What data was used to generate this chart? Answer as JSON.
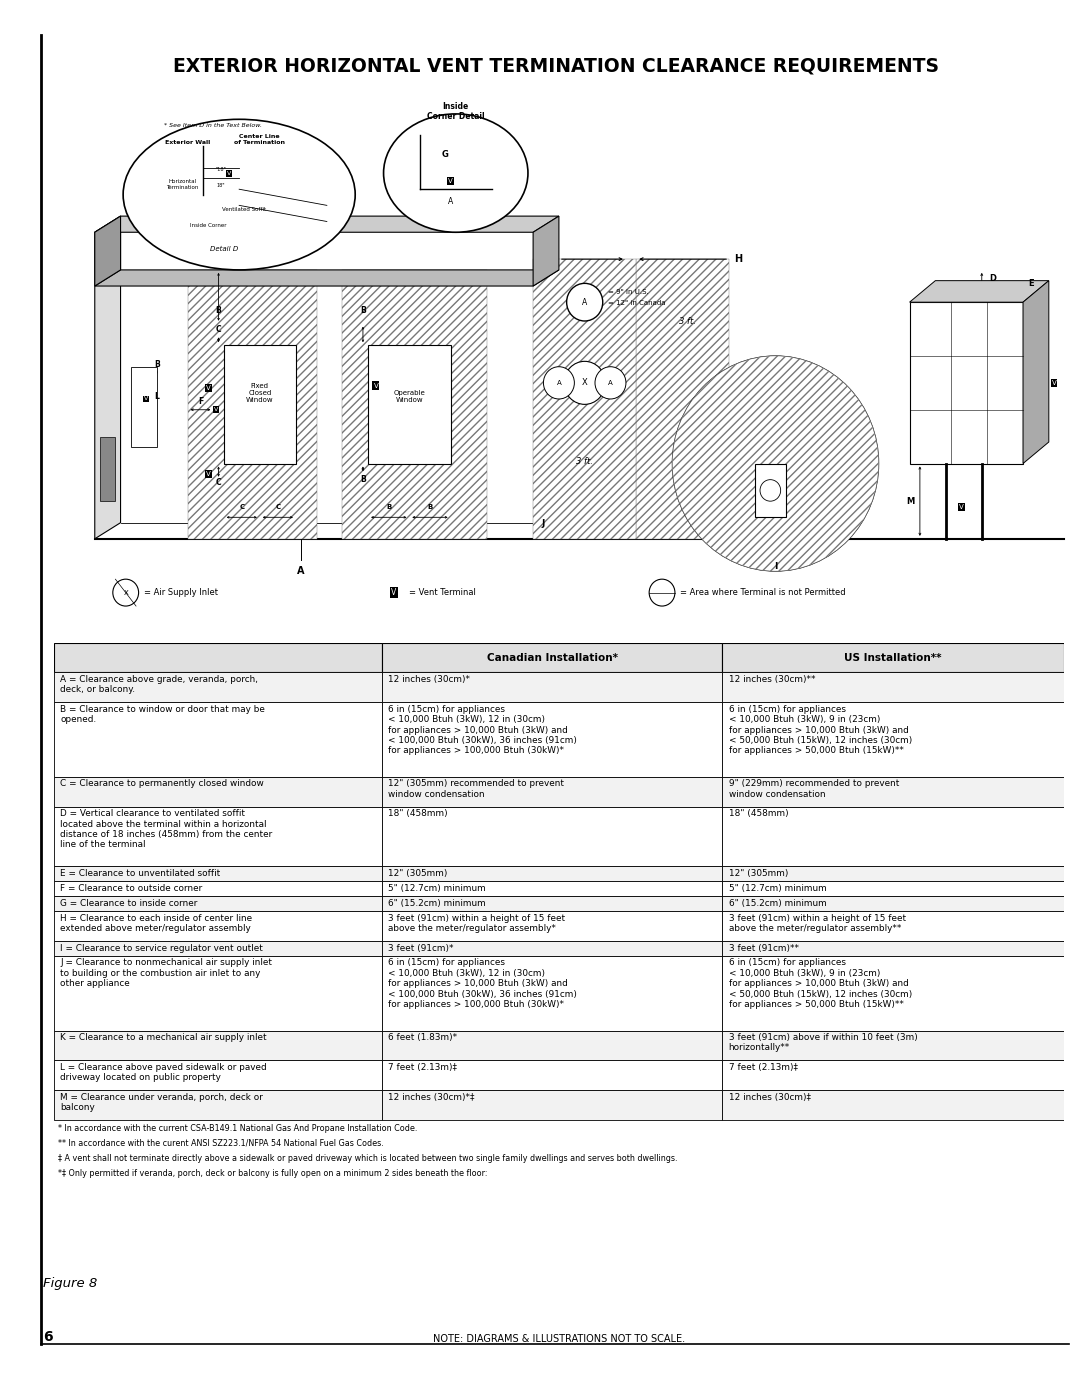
{
  "title": "EXTERIOR HORIZONTAL VENT TERMINATION CLEARANCE REQUIREMENTS",
  "bg_color": "#ffffff",
  "title_fontsize": 13.5,
  "table_headers": [
    "",
    "Canadian Installation*",
    "US Installation**"
  ],
  "table_rows": [
    [
      "A = Clearance above grade, veranda, porch,\ndeck, or balcony.",
      "12 inches (30cm)*",
      "12 inches (30cm)**"
    ],
    [
      "B = Clearance to window or door that may be\nopened.",
      "6 in (15cm) for appliances\n< 10,000 Btuh (3kW), 12 in (30cm)\nfor appliances > 10,000 Btuh (3kW) and\n< 100,000 Btuh (30kW), 36 inches (91cm)\nfor appliances > 100,000 Btuh (30kW)*",
      "6 in (15cm) for appliances\n< 10,000 Btuh (3kW), 9 in (23cm)\nfor appliances > 10,000 Btuh (3kW) and\n< 50,000 Btuh (15kW), 12 inches (30cm)\nfor appliances > 50,000 Btuh (15kW)**"
    ],
    [
      "C = Clearance to permanently closed window",
      "12\" (305mm) recommended to prevent\nwindow condensation",
      "9\" (229mm) recommended to prevent\nwindow condensation"
    ],
    [
      "D = Vertical clearance to ventilated soffit\nlocated above the terminal within a horizontal\ndistance of 18 inches (458mm) from the center\nline of the terminal",
      "18\" (458mm)",
      "18\" (458mm)"
    ],
    [
      "E = Clearance to unventilated soffit",
      "12\" (305mm)",
      "12\" (305mm)"
    ],
    [
      "F = Clearance to outside corner",
      "5\" (12.7cm) minimum",
      "5\" (12.7cm) minimum"
    ],
    [
      "G = Clearance to inside corner",
      "6\" (15.2cm) minimum",
      "6\" (15.2cm) minimum"
    ],
    [
      "H = Clearance to each inside of center line\nextended above meter/regulator assembly",
      "3 feet (91cm) within a height of 15 feet\nabove the meter/regulator assembly*",
      "3 feet (91cm) within a height of 15 feet\nabove the meter/regulator assembly**"
    ],
    [
      "I = Clearance to service regulator vent outlet",
      "3 feet (91cm)*",
      "3 feet (91cm)**"
    ],
    [
      "J = Clearance to nonmechanical air supply inlet\nto building or the combustion air inlet to any\nother appliance",
      "6 in (15cm) for appliances\n< 10,000 Btuh (3kW), 12 in (30cm)\nfor appliances > 10,000 Btuh (3kW) and\n< 100,000 Btuh (30kW), 36 inches (91cm)\nfor appliances > 100,000 Btuh (30kW)*",
      "6 in (15cm) for appliances\n< 10,000 Btuh (3kW), 9 in (23cm)\nfor appliances > 10,000 Btuh (3kW) and\n< 50,000 Btuh (15kW), 12 inches (30cm)\nfor appliances > 50,000 Btuh (15kW)**"
    ],
    [
      "K = Clearance to a mechanical air supply inlet",
      "6 feet (1.83m)*",
      "3 feet (91cm) above if within 10 feet (3m)\nhorizontally**"
    ],
    [
      "L = Clearance above paved sidewalk or paved\ndriveway located on public property",
      "7 feet (2.13m)‡",
      "7 feet (2.13m)‡"
    ],
    [
      "M = Clearance under veranda, porch, deck or\nbalcony",
      "12 inches (30cm)*‡",
      "12 inches (30cm)‡"
    ]
  ],
  "footnotes": [
    "* In accordance with the current CSA-B149.1 National Gas And Propane Installation Code.",
    "** In accordance with the curent ANSI SZ223.1/NFPA 54 National Fuel Gas Codes.",
    "‡ A vent shall not terminate directly above a sidewalk or paved driveway which is located between two single family dwellings and serves both dwellings.",
    "*‡ Only permitted if veranda, porch, deck or balcony is fully open on a minimum 2 sides beneath the floor:"
  ],
  "figure_label": "Figure 8",
  "page_number": "6",
  "note_text": "NOTE: DIAGRAMS & ILLUSTRATIONS NOT TO SCALE."
}
